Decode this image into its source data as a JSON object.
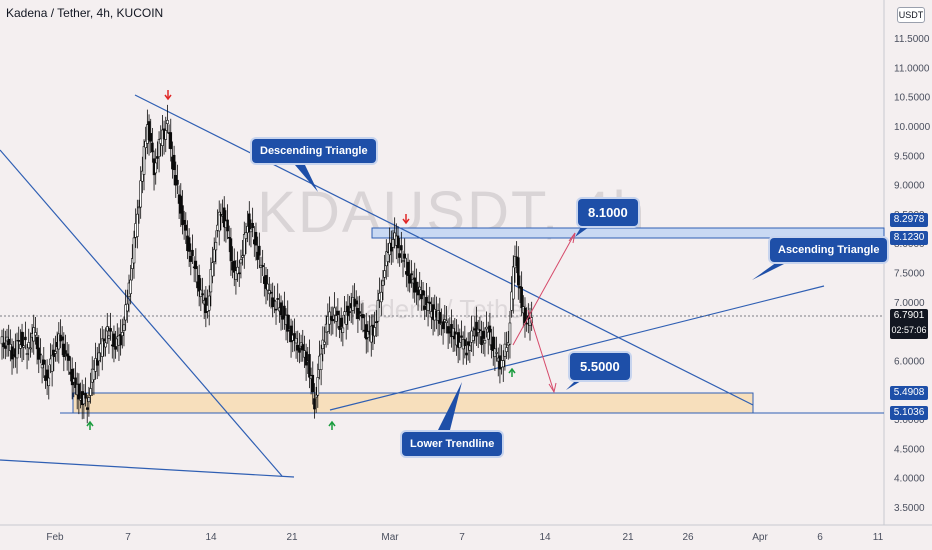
{
  "header": {
    "title": "Kadena / Tether, 4h, KUCOIN"
  },
  "unit_label": "USDT",
  "watermark": {
    "line1": "KDAUSDT, 4h",
    "line2": "Kadena / Tether"
  },
  "chart_data": {
    "type": "candlestick",
    "symbol": "KDAUSDT",
    "interval": "4h",
    "exchange": "KUCOIN",
    "y_ticks": [
      "3.5000",
      "4.0000",
      "4.5000",
      "5.0000",
      "5.5000",
      "6.0000",
      "6.5000",
      "7.0000",
      "7.5000",
      "8.0000",
      "8.5000",
      "9.0000",
      "9.5000",
      "10.0000",
      "10.5000",
      "11.0000",
      "11.5000"
    ],
    "x_ticks": [
      "Feb",
      "7",
      "14",
      "21",
      "Mar",
      "7",
      "14",
      "21",
      "26",
      "Apr",
      "6",
      "11"
    ],
    "ylim": [
      3.3,
      12.0
    ],
    "last_price": "6.7901",
    "countdown": "02:57:06",
    "price_tags": [
      "8.2978",
      "8.1230",
      "5.4908",
      "5.1036"
    ],
    "zones": [
      {
        "name": "resistance",
        "from": 8.123,
        "to": 8.2978,
        "color": "#c7d7f1"
      },
      {
        "name": "support",
        "from": 5.1036,
        "to": 5.4908,
        "color": "#f7dfbc"
      }
    ],
    "ohlc_series": [
      6.3,
      6.1,
      6.4,
      6.2,
      6.5,
      6.0,
      5.7,
      6.2,
      6.4,
      6.0,
      5.6,
      5.4,
      5.3,
      5.9,
      6.2,
      6.5,
      6.3,
      6.4,
      7.0,
      8.0,
      9.0,
      10.1,
      9.3,
      9.8,
      10.0,
      9.2,
      8.6,
      8.0,
      7.6,
      7.1,
      6.9,
      8.0,
      8.6,
      8.2,
      7.4,
      7.7,
      8.4,
      8.1,
      7.6,
      7.2,
      7.0,
      6.9,
      6.6,
      6.3,
      6.2,
      6.0,
      5.3,
      6.2,
      6.7,
      6.8,
      6.6,
      6.9,
      7.0,
      6.7,
      6.4,
      6.6,
      7.3,
      7.9,
      8.1,
      7.8,
      7.5,
      7.3,
      7.1,
      6.9,
      6.8,
      6.7,
      6.6,
      6.4,
      6.3,
      6.2,
      6.6,
      6.4,
      6.5,
      6.1,
      5.95,
      6.4,
      7.9,
      6.9,
      6.6,
      6.8
    ],
    "annotations": {
      "descending_triangle": "Descending Triangle",
      "ascending_triangle": "Ascending Triangle",
      "lower_trendline": "Lower Trendline",
      "target_up": "8.1000",
      "target_down": "5.5000"
    },
    "colors": {
      "line": "#2f5fb3",
      "up_candle": "#ffffff",
      "down_candle": "#0b0b0b",
      "arrow_red": "#e02727",
      "arrow_green": "#1a9c3e",
      "projection": "#d64a6a"
    }
  }
}
